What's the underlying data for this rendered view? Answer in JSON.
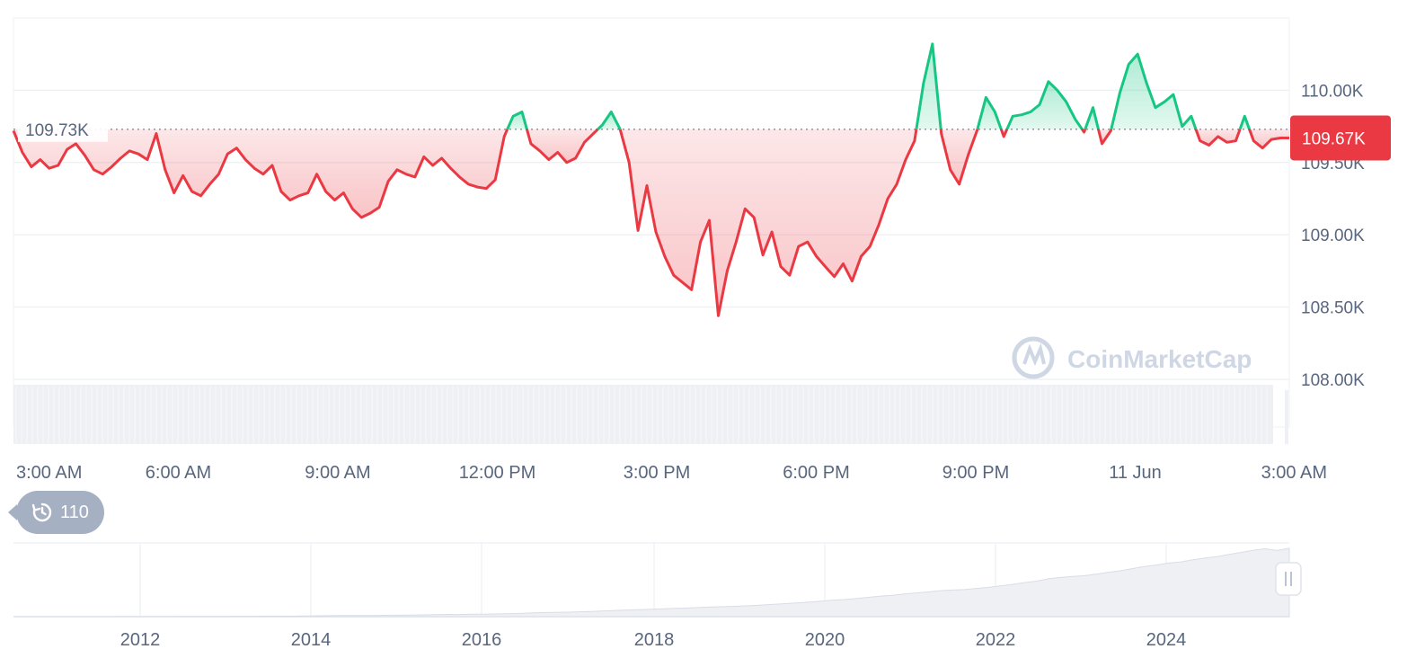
{
  "chart_data": {
    "type": "line",
    "series": [
      {
        "points": [
          [
            "03:00",
            109.72
          ],
          [
            "03:10",
            109.57
          ],
          [
            "03:20",
            109.47
          ],
          [
            "03:30",
            109.52
          ],
          [
            "03:40",
            109.46
          ],
          [
            "03:50",
            109.48
          ],
          [
            "04:00",
            109.59
          ],
          [
            "04:10",
            109.63
          ],
          [
            "04:20",
            109.55
          ],
          [
            "04:30",
            109.45
          ],
          [
            "04:40",
            109.42
          ],
          [
            "04:50",
            109.47
          ],
          [
            "05:00",
            109.53
          ],
          [
            "05:10",
            109.58
          ],
          [
            "05:20",
            109.56
          ],
          [
            "05:30",
            109.52
          ],
          [
            "05:40",
            109.7
          ],
          [
            "05:50",
            109.45
          ],
          [
            "06:00",
            109.29
          ],
          [
            "06:10",
            109.41
          ],
          [
            "06:20",
            109.3
          ],
          [
            "06:30",
            109.27
          ],
          [
            "06:40",
            109.35
          ],
          [
            "06:50",
            109.42
          ],
          [
            "07:00",
            109.56
          ],
          [
            "07:10",
            109.6
          ],
          [
            "07:20",
            109.52
          ],
          [
            "07:30",
            109.46
          ],
          [
            "07:40",
            109.42
          ],
          [
            "07:50",
            109.48
          ],
          [
            "08:00",
            109.3
          ],
          [
            "08:10",
            109.24
          ],
          [
            "08:20",
            109.27
          ],
          [
            "08:30",
            109.29
          ],
          [
            "08:40",
            109.42
          ],
          [
            "08:50",
            109.3
          ],
          [
            "09:00",
            109.24
          ],
          [
            "09:10",
            109.29
          ],
          [
            "09:20",
            109.18
          ],
          [
            "09:30",
            109.12
          ],
          [
            "09:40",
            109.15
          ],
          [
            "09:50",
            109.19
          ],
          [
            "10:00",
            109.37
          ],
          [
            "10:10",
            109.45
          ],
          [
            "10:20",
            109.42
          ],
          [
            "10:30",
            109.4
          ],
          [
            "10:40",
            109.54
          ],
          [
            "10:50",
            109.48
          ],
          [
            "11:00",
            109.53
          ],
          [
            "11:10",
            109.46
          ],
          [
            "11:20",
            109.4
          ],
          [
            "11:30",
            109.35
          ],
          [
            "11:40",
            109.33
          ],
          [
            "11:50",
            109.32
          ],
          [
            "12:00",
            109.38
          ],
          [
            "12:10",
            109.68
          ],
          [
            "12:20",
            109.82
          ],
          [
            "12:30",
            109.85
          ],
          [
            "12:40",
            109.63
          ],
          [
            "12:50",
            109.58
          ],
          [
            "13:00",
            109.52
          ],
          [
            "13:10",
            109.57
          ],
          [
            "13:20",
            109.5
          ],
          [
            "13:30",
            109.53
          ],
          [
            "13:40",
            109.64
          ],
          [
            "13:50",
            109.7
          ],
          [
            "14:00",
            109.76
          ],
          [
            "14:10",
            109.85
          ],
          [
            "14:20",
            109.73
          ],
          [
            "14:30",
            109.5
          ],
          [
            "14:40",
            109.03
          ],
          [
            "14:50",
            109.34
          ],
          [
            "15:00",
            109.02
          ],
          [
            "15:10",
            108.85
          ],
          [
            "15:20",
            108.72
          ],
          [
            "15:30",
            108.67
          ],
          [
            "15:40",
            108.62
          ],
          [
            "15:50",
            108.95
          ],
          [
            "16:00",
            109.1
          ],
          [
            "16:10",
            108.44
          ],
          [
            "16:20",
            108.75
          ],
          [
            "16:30",
            108.95
          ],
          [
            "16:40",
            109.18
          ],
          [
            "16:50",
            109.12
          ],
          [
            "17:00",
            108.86
          ],
          [
            "17:10",
            109.02
          ],
          [
            "17:20",
            108.78
          ],
          [
            "17:30",
            108.72
          ],
          [
            "17:40",
            108.92
          ],
          [
            "17:50",
            108.95
          ],
          [
            "18:00",
            108.85
          ],
          [
            "18:10",
            108.78
          ],
          [
            "18:20",
            108.71
          ],
          [
            "18:30",
            108.8
          ],
          [
            "18:40",
            108.68
          ],
          [
            "18:50",
            108.85
          ],
          [
            "19:00",
            108.92
          ],
          [
            "19:10",
            109.07
          ],
          [
            "19:20",
            109.25
          ],
          [
            "19:30",
            109.35
          ],
          [
            "19:40",
            109.52
          ],
          [
            "19:50",
            109.65
          ],
          [
            "20:00",
            110.05
          ],
          [
            "20:10",
            110.32
          ],
          [
            "20:20",
            109.7
          ],
          [
            "20:30",
            109.45
          ],
          [
            "20:40",
            109.35
          ],
          [
            "20:50",
            109.55
          ],
          [
            "21:00",
            109.72
          ],
          [
            "21:10",
            109.95
          ],
          [
            "21:20",
            109.85
          ],
          [
            "21:30",
            109.68
          ],
          [
            "21:40",
            109.82
          ],
          [
            "21:50",
            109.83
          ],
          [
            "22:00",
            109.85
          ],
          [
            "22:10",
            109.9
          ],
          [
            "22:20",
            110.06
          ],
          [
            "22:30",
            110.0
          ],
          [
            "22:40",
            109.92
          ],
          [
            "22:50",
            109.8
          ],
          [
            "23:00",
            109.71
          ],
          [
            "23:10",
            109.88
          ],
          [
            "23:20",
            109.63
          ],
          [
            "23:30",
            109.72
          ],
          [
            "23:40",
            109.98
          ],
          [
            "23:50",
            110.18
          ],
          [
            "00:00",
            110.25
          ],
          [
            "00:10",
            110.05
          ],
          [
            "00:20",
            109.88
          ],
          [
            "00:30",
            109.92
          ],
          [
            "00:40",
            109.97
          ],
          [
            "00:50",
            109.75
          ],
          [
            "01:00",
            109.82
          ],
          [
            "01:10",
            109.65
          ],
          [
            "01:20",
            109.62
          ],
          [
            "01:30",
            109.68
          ],
          [
            "01:40",
            109.64
          ],
          [
            "01:50",
            109.65
          ],
          [
            "02:00",
            109.82
          ],
          [
            "02:10",
            109.65
          ],
          [
            "02:20",
            109.6
          ],
          [
            "02:30",
            109.66
          ],
          [
            "02:40",
            109.67
          ],
          [
            "02:50",
            109.67
          ]
        ]
      }
    ],
    "x_labels": [
      "3:00 AM",
      "6:00 AM",
      "9:00 AM",
      "12:00 PM",
      "3:00 PM",
      "6:00 PM",
      "9:00 PM",
      "11 Jun",
      "3:00 AM"
    ],
    "y_ticks": [
      "110.00K",
      "109.50K",
      "109.00K",
      "108.50K",
      "108.00K"
    ],
    "y_tick_values": [
      110.0,
      109.5,
      109.0,
      108.5,
      108.0
    ],
    "ylim": [
      108.0,
      110.5
    ],
    "reference_line": {
      "value": 109.73,
      "label": "109.73K"
    },
    "current_price": {
      "value": 109.67,
      "label": "109.67K"
    },
    "colors": {
      "up": "#16c784",
      "down": "#ea3943",
      "up_fill": "#d5f5e7",
      "down_fill": "#fde4e6",
      "volume": "#eef0f4",
      "grid": "#eff2f5"
    },
    "grid": true,
    "volume_bars": true,
    "navigator": {
      "x_labels": [
        "2012",
        "2014",
        "2016",
        "2018",
        "2020",
        "2022",
        "2024"
      ],
      "values": [
        0.001,
        0.003,
        0.004,
        0.006,
        0.01,
        0.02,
        0.02,
        0.03,
        0.07,
        0.09,
        0.11,
        0.14,
        0.17,
        0.21,
        0.27,
        0.37,
        0.42,
        0.43,
        0.46,
        0.54,
        0.62,
        0.93,
        0.81,
        0.74,
        1.05,
        1.34,
        1.65,
        1.74,
        1.83,
        1.72,
        1.94,
        2.22,
        2.32,
        2.63,
        2.92,
        3.32,
        3.63,
        3.42,
        3.92,
        3.96,
        4.32,
        4.72,
        5.12,
        5.88,
        6.61,
        6.83,
        7.25,
        7.75,
        8.42,
        9.19,
        9.9,
        10.61,
        11.21,
        11.97,
        12.7,
        13.33,
        13.92,
        14.88,
        15.46,
        16.06,
        16.59,
        17.47,
        18.5,
        19.62,
        20.73,
        21.95,
        23.25,
        24.69,
        26.27,
        27.44,
        28.99,
        31.05,
        32.84,
        34.25,
        36.4,
        38.04,
        39.75,
        41.7,
        42.78,
        43.4,
        45.24,
        47.01,
        49.29,
        51.75,
        54.74,
        56.97,
        60.86,
        62.97,
        64.59,
        65.78,
        68.46,
        71.3,
        73.7,
        77.13,
        80.62,
        82.95,
        86.21,
        87.91,
        91.17,
        94.05,
        96.42,
        99.95,
        103.14,
        106.57,
        108.95,
        106.15,
        109.67
      ]
    }
  },
  "icons": {
    "history": "history-icon"
  },
  "history_badge": {
    "label": "110"
  },
  "watermark": {
    "text": "CoinMarketCap",
    "icon": "coinmarketcap-logo-icon"
  }
}
